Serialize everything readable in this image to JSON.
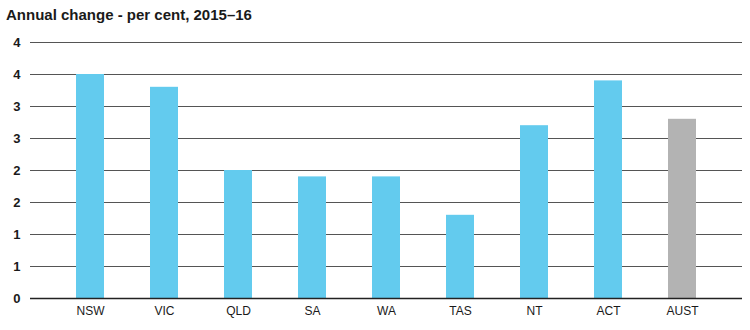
{
  "chart_data": {
    "type": "bar",
    "title": "Annual change - per cent, 2015–16",
    "categories": [
      "NSW",
      "VIC",
      "QLD",
      "SA",
      "WA",
      "TAS",
      "NT",
      "ACT",
      "AUST"
    ],
    "values": [
      3.5,
      3.3,
      2.0,
      1.9,
      1.9,
      1.3,
      2.7,
      3.4,
      2.8
    ],
    "colors": [
      "#63cbee",
      "#63cbee",
      "#63cbee",
      "#63cbee",
      "#63cbee",
      "#63cbee",
      "#63cbee",
      "#63cbee",
      "#b3b3b3"
    ],
    "ylim": [
      0,
      4
    ],
    "yticks": [
      0,
      {
        "value": 0.5,
        "label": "1"
      },
      1,
      {
        "value": 1.5,
        "label": "2"
      },
      2,
      {
        "value": 2.5,
        "label": "3"
      },
      3,
      {
        "value": 3.5,
        "label": "4"
      },
      4
    ],
    "grid": true
  }
}
